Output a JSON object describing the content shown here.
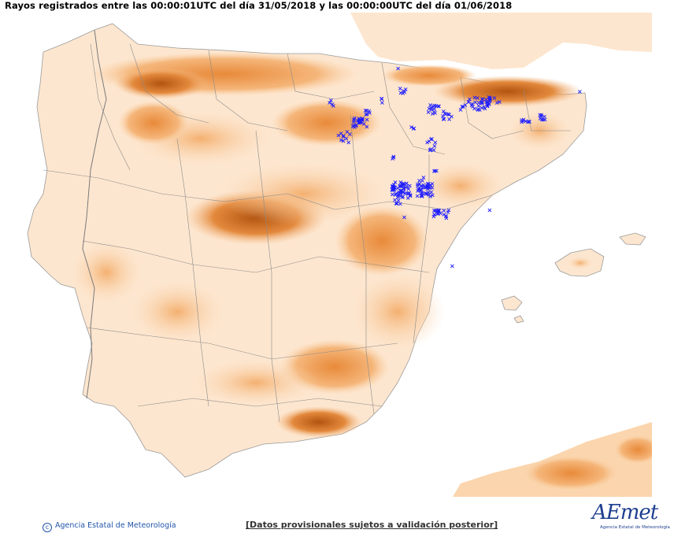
{
  "header": {
    "title": "Rayos registrados entre las 00:00:01UTC del día 31/05/2018 y las 00:00:00UTC del día 01/06/2018"
  },
  "map": {
    "region": "Península Ibérica y Baleares",
    "lightning_marker": "×",
    "colors": {
      "sea": "#ffffff",
      "land_low": "#fde6cf",
      "land_mid": "#f9c999",
      "land_high": "#ee9a4e",
      "land_peak": "#b9580e",
      "border": "#8a8a8a",
      "lightning": "#1a1aff"
    }
  },
  "footer": {
    "copyright": "Agencia Estatal de Meteorología",
    "disclaimer": "[Datos provisionales sujetos a validación posterior]",
    "logo_text": "AEmet",
    "logo_subtitle": "Agencia Estatal de Meteorología"
  }
}
